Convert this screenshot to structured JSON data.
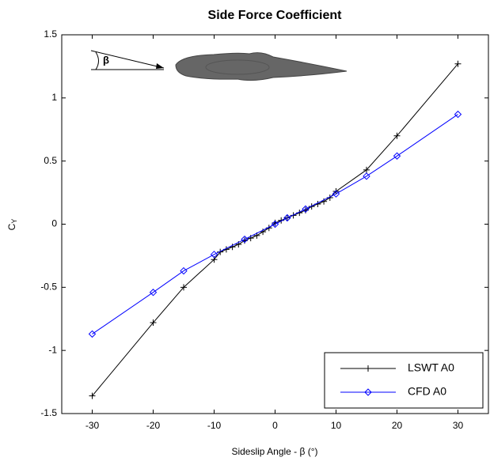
{
  "chart_data": {
    "type": "line",
    "title": "Side Force Coefficient",
    "x_label": "Sideslip Angle  -  β  (°)",
    "y_label": {
      "main": "C",
      "subscript": "Y"
    },
    "annotation": "β",
    "xlim": [
      -35,
      35
    ],
    "xticks": [
      -30,
      -20,
      -10,
      0,
      10,
      20,
      30
    ],
    "ylim": [
      -1.5,
      1.5
    ],
    "yticks": [
      -1.5,
      -1,
      -0.5,
      0,
      0.5,
      1,
      1.5
    ],
    "grid": false,
    "legend": "lower right",
    "series": [
      {
        "name": "LSWT A0",
        "color": "#000000",
        "marker": "plus",
        "x": [
          -30,
          -20,
          -15,
          -10,
          -9,
          -8,
          -7,
          -6,
          -5,
          -4,
          -3,
          -2,
          -1,
          0,
          1,
          2,
          3,
          4,
          5,
          6,
          7,
          8,
          9,
          10,
          15,
          20,
          30
        ],
        "values": [
          -1.36,
          -0.78,
          -0.5,
          -0.28,
          -0.22,
          -0.2,
          -0.18,
          -0.16,
          -0.13,
          -0.11,
          -0.09,
          -0.06,
          -0.03,
          0.01,
          0.03,
          0.05,
          0.07,
          0.09,
          0.11,
          0.14,
          0.16,
          0.18,
          0.21,
          0.26,
          0.43,
          0.7,
          1.27
        ]
      },
      {
        "name": "CFD A0",
        "color": "#0000ff",
        "marker": "diamond",
        "x": [
          -30,
          -20,
          -15,
          -10,
          -5,
          0,
          2,
          5,
          10,
          15,
          20,
          30
        ],
        "values": [
          -0.87,
          -0.54,
          -0.37,
          -0.24,
          -0.12,
          0,
          0.05,
          0.12,
          0.24,
          0.38,
          0.54,
          0.87
        ]
      }
    ]
  }
}
